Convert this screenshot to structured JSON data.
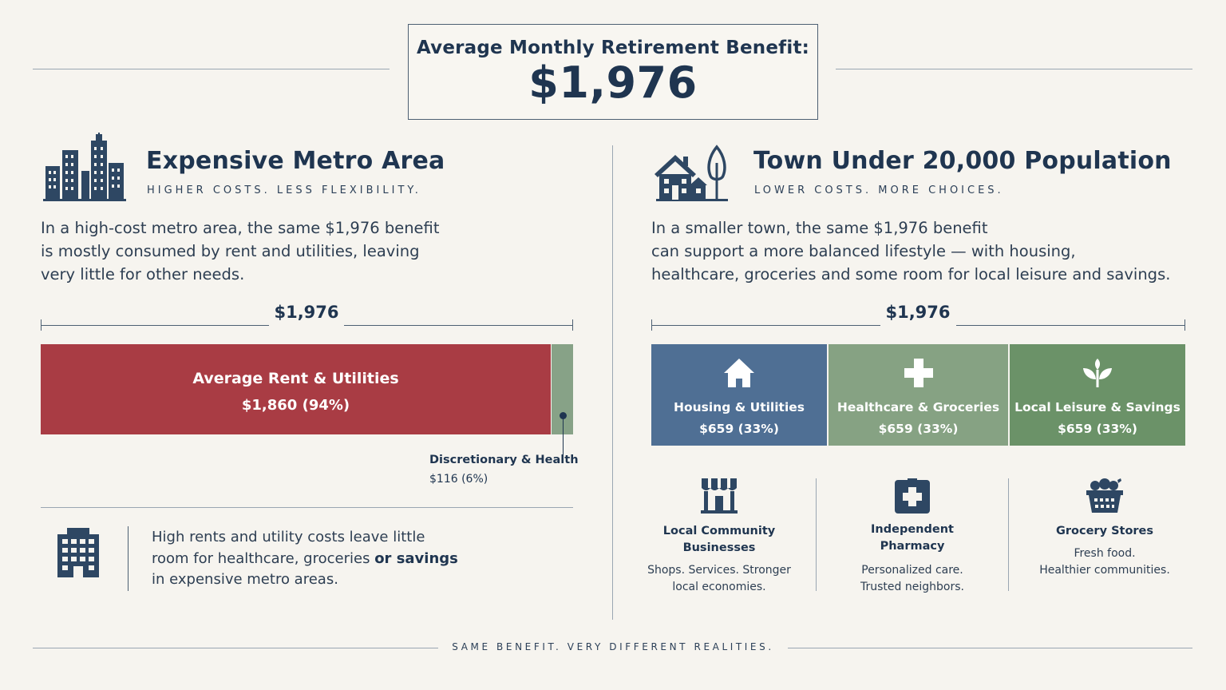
{
  "header": {
    "label": "Average Monthly Retirement Benefit:",
    "amount": "$1,976"
  },
  "left": {
    "title": "Expensive Metro Area",
    "subtitle": "HIGHER COSTS. LESS FLEXIBILITY.",
    "description_lines": [
      "In a high-cost metro area, the same $1,976 benefit",
      "is mostly consumed by rent and utilities, leaving",
      "very little for other needs."
    ],
    "scale_amount": "$1,976",
    "rent": {
      "label": "Average Rent & Utilities",
      "value": "$1,860 (94%)",
      "share": 0.94
    },
    "discretionary": {
      "label": "Discretionary & Health",
      "value": "$116 (6%)",
      "share": 0.06
    },
    "note": {
      "line1": "High rents and utility costs leave little",
      "line2_pre": "room for healthcare, groceries ",
      "line2_bold": "or savings",
      "line3": "in expensive metro areas."
    }
  },
  "right": {
    "title": "Town Under 20,000 Population",
    "subtitle": "LOWER COSTS. MORE CHOICES.",
    "description_lines": [
      "In a smaller town, the same $1,976 benefit",
      "can support a more balanced lifestyle — with housing,",
      "healthcare, groceries and some room for local leisure and savings."
    ],
    "scale_amount": "$1,976",
    "segments": [
      {
        "label": "Housing & Utilities",
        "value": "$659 (33%)",
        "color": "#4f6f94",
        "icon": "house-icon",
        "share": 0.33
      },
      {
        "label": "Healthcare & Groceries",
        "value": "$659 (33%)",
        "color": "#86a283",
        "icon": "medical-cross-icon",
        "share": 0.33
      },
      {
        "label": "Local Leisure & Savings",
        "value": "$659 (33%)",
        "color": "#6b9268",
        "icon": "sprout-icon",
        "share": 0.33
      }
    ],
    "features": [
      {
        "name_line1": "Local Community",
        "name_line2": "Businesses",
        "desc_line1": "Shops. Services. Stronger",
        "desc_line2": "local economies.",
        "icon": "storefront-icon"
      },
      {
        "name_line1": "Independent",
        "name_line2": "Pharmacy",
        "desc_line1": "Personalized care.",
        "desc_line2": "Trusted neighbors.",
        "icon": "pharmacy-cross-icon"
      },
      {
        "name_line1": "Grocery Stores",
        "name_line2": "",
        "desc_line1": "Fresh food.",
        "desc_line2": "Healthier communities.",
        "icon": "grocery-basket-icon"
      }
    ]
  },
  "footer": "SAME BENEFIT. VERY DIFFERENT REALITIES.",
  "colors": {
    "background": "#f6f4ef",
    "navy": "#1f3550",
    "rent_red": "#a93c44",
    "discretionary_green": "#87a287"
  }
}
